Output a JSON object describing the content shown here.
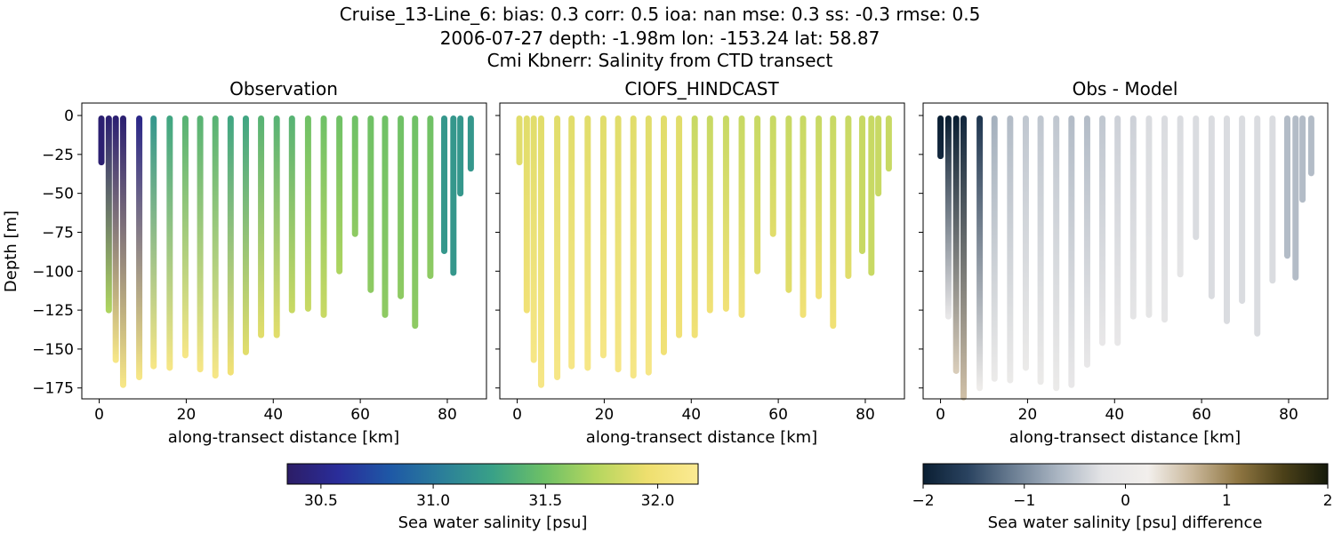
{
  "title_lines": [
    "Cruise_13-Line_6: bias: 0.3  corr: 0.5  ioa: nan  mse: 0.3  ss: -0.3  rmse: 0.5",
    "2006-07-27 depth: -1.98m lon: -153.24 lat: 58.87",
    "Cmi Kbnerr: Salinity from CTD transect"
  ],
  "colors": {
    "salinity_colormap": [
      "#2c1d66",
      "#2a2d9a",
      "#1e58a6",
      "#2b7e9a",
      "#39a187",
      "#6dc066",
      "#b4d65f",
      "#eedf6e",
      "#fbea93"
    ],
    "difference_colormap": [
      "#0b1f33",
      "#2a4360",
      "#6b7e93",
      "#aab5c2",
      "#e4e4e6",
      "#f2efec",
      "#c9b79a",
      "#8f7642",
      "#4c4119",
      "#151a0b"
    ]
  },
  "chart_data": [
    {
      "type": "scatter",
      "subtype": "depth-transect",
      "title": "Observation",
      "xlabel": "along-transect distance [km]",
      "ylabel": "Depth [m]",
      "xlim": [
        -4,
        89
      ],
      "ylim": [
        -182,
        8
      ],
      "xticks": [
        0,
        20,
        40,
        60,
        80
      ],
      "yticks": [
        0,
        -25,
        -50,
        -75,
        -100,
        -125,
        -150,
        -175
      ],
      "color_scale": "salinity",
      "casts": [
        {
          "x": 0.5,
          "depth": 30,
          "top": 30.4,
          "bottom": 30.4
        },
        {
          "x": 2.2,
          "depth": 125,
          "top": 30.4,
          "bottom": 31.7
        },
        {
          "x": 3.8,
          "depth": 157,
          "top": 30.4,
          "bottom": 32.1
        },
        {
          "x": 5.5,
          "depth": 173,
          "top": 30.4,
          "bottom": 32.1
        },
        {
          "x": 9.2,
          "depth": 168,
          "top": 30.5,
          "bottom": 32.1
        },
        {
          "x": 12.5,
          "depth": 161,
          "top": 31.2,
          "bottom": 32.1
        },
        {
          "x": 16.2,
          "depth": 162,
          "top": 31.3,
          "bottom": 32.1
        },
        {
          "x": 19.8,
          "depth": 154,
          "top": 31.4,
          "bottom": 32.1
        },
        {
          "x": 23.2,
          "depth": 163,
          "top": 31.4,
          "bottom": 32.1
        },
        {
          "x": 26.7,
          "depth": 167,
          "top": 31.4,
          "bottom": 32.1
        },
        {
          "x": 30.2,
          "depth": 165,
          "top": 31.3,
          "bottom": 32.0
        },
        {
          "x": 33.7,
          "depth": 152,
          "top": 31.3,
          "bottom": 31.9
        },
        {
          "x": 37.2,
          "depth": 141,
          "top": 31.4,
          "bottom": 31.9
        },
        {
          "x": 40.8,
          "depth": 141,
          "top": 31.4,
          "bottom": 31.9
        },
        {
          "x": 44.3,
          "depth": 125,
          "top": 31.4,
          "bottom": 31.8
        },
        {
          "x": 48.0,
          "depth": 124,
          "top": 31.5,
          "bottom": 31.8
        },
        {
          "x": 51.6,
          "depth": 128,
          "top": 31.5,
          "bottom": 31.8
        },
        {
          "x": 55.2,
          "depth": 100,
          "top": 31.5,
          "bottom": 31.7
        },
        {
          "x": 58.8,
          "depth": 76,
          "top": 31.5,
          "bottom": 31.6
        },
        {
          "x": 62.4,
          "depth": 112,
          "top": 31.5,
          "bottom": 31.6
        },
        {
          "x": 65.7,
          "depth": 128,
          "top": 31.5,
          "bottom": 31.6
        },
        {
          "x": 69.3,
          "depth": 116,
          "top": 31.5,
          "bottom": 31.6
        },
        {
          "x": 72.6,
          "depth": 135,
          "top": 31.5,
          "bottom": 31.6
        },
        {
          "x": 76.1,
          "depth": 103,
          "top": 31.5,
          "bottom": 31.6
        },
        {
          "x": 79.3,
          "depth": 87,
          "top": 31.2,
          "bottom": 31.2
        },
        {
          "x": 81.4,
          "depth": 101,
          "top": 31.2,
          "bottom": 31.2
        },
        {
          "x": 83.0,
          "depth": 50,
          "top": 31.2,
          "bottom": 31.2
        },
        {
          "x": 85.4,
          "depth": 34,
          "top": 31.2,
          "bottom": 31.2
        }
      ]
    },
    {
      "type": "scatter",
      "subtype": "depth-transect",
      "title": "CIOFS_HINDCAST",
      "xlabel": "along-transect distance [km]",
      "ylabel": "",
      "xlim": [
        -4,
        89
      ],
      "ylim": [
        -182,
        8
      ],
      "xticks": [
        0,
        20,
        40,
        60,
        80
      ],
      "yticks": [
        0,
        -25,
        -50,
        -75,
        -100,
        -125,
        -150,
        -175
      ],
      "color_scale": "salinity",
      "casts": [
        {
          "x": 0.5,
          "depth": 30,
          "top": 31.9,
          "bottom": 31.9
        },
        {
          "x": 2.2,
          "depth": 125,
          "top": 31.9,
          "bottom": 32.0
        },
        {
          "x": 3.8,
          "depth": 157,
          "top": 31.9,
          "bottom": 32.1
        },
        {
          "x": 5.5,
          "depth": 173,
          "top": 31.9,
          "bottom": 32.1
        },
        {
          "x": 9.2,
          "depth": 168,
          "top": 31.9,
          "bottom": 32.1
        },
        {
          "x": 12.5,
          "depth": 161,
          "top": 31.9,
          "bottom": 32.1
        },
        {
          "x": 16.2,
          "depth": 162,
          "top": 31.9,
          "bottom": 32.1
        },
        {
          "x": 19.8,
          "depth": 154,
          "top": 31.9,
          "bottom": 32.1
        },
        {
          "x": 23.2,
          "depth": 163,
          "top": 31.9,
          "bottom": 32.1
        },
        {
          "x": 26.7,
          "depth": 167,
          "top": 31.9,
          "bottom": 32.1
        },
        {
          "x": 30.2,
          "depth": 165,
          "top": 31.9,
          "bottom": 32.1
        },
        {
          "x": 33.7,
          "depth": 152,
          "top": 31.9,
          "bottom": 32.0
        },
        {
          "x": 37.2,
          "depth": 141,
          "top": 31.9,
          "bottom": 32.0
        },
        {
          "x": 40.8,
          "depth": 141,
          "top": 31.8,
          "bottom": 32.0
        },
        {
          "x": 44.3,
          "depth": 125,
          "top": 31.8,
          "bottom": 32.0
        },
        {
          "x": 48.0,
          "depth": 124,
          "top": 31.8,
          "bottom": 32.0
        },
        {
          "x": 51.6,
          "depth": 128,
          "top": 31.8,
          "bottom": 32.0
        },
        {
          "x": 55.2,
          "depth": 100,
          "top": 31.8,
          "bottom": 31.9
        },
        {
          "x": 58.8,
          "depth": 76,
          "top": 31.8,
          "bottom": 31.9
        },
        {
          "x": 62.4,
          "depth": 112,
          "top": 31.8,
          "bottom": 31.9
        },
        {
          "x": 65.7,
          "depth": 128,
          "top": 31.8,
          "bottom": 32.0
        },
        {
          "x": 69.3,
          "depth": 116,
          "top": 31.8,
          "bottom": 32.0
        },
        {
          "x": 72.6,
          "depth": 135,
          "top": 31.8,
          "bottom": 32.0
        },
        {
          "x": 76.1,
          "depth": 103,
          "top": 31.8,
          "bottom": 31.9
        },
        {
          "x": 79.3,
          "depth": 87,
          "top": 31.8,
          "bottom": 31.8
        },
        {
          "x": 81.4,
          "depth": 101,
          "top": 31.8,
          "bottom": 31.8
        },
        {
          "x": 83.0,
          "depth": 50,
          "top": 31.8,
          "bottom": 31.8
        },
        {
          "x": 85.4,
          "depth": 34,
          "top": 31.8,
          "bottom": 31.8
        }
      ]
    },
    {
      "type": "scatter",
      "subtype": "depth-transect",
      "title": "Obs - Model",
      "xlabel": "along-transect distance [km]",
      "ylabel": "",
      "xlim": [
        -4,
        89
      ],
      "ylim": [
        -182,
        8
      ],
      "xticks": [
        0,
        20,
        40,
        60,
        80
      ],
      "yticks": [
        0,
        -25,
        -50,
        -75,
        -100,
        -125,
        -150,
        -175
      ],
      "color_scale": "difference",
      "casts": [
        {
          "x": 0.0,
          "depth": 26,
          "top": -2.0,
          "bottom": -1.9
        },
        {
          "x": 1.8,
          "depth": 129,
          "top": -2.0,
          "bottom": -0.1
        },
        {
          "x": 3.6,
          "depth": 164,
          "top": -2.0,
          "bottom": 0.5
        },
        {
          "x": 5.3,
          "depth": 181,
          "top": -1.9,
          "bottom": 0.6
        },
        {
          "x": 9.0,
          "depth": 175,
          "top": -1.7,
          "bottom": 0.1
        },
        {
          "x": 12.4,
          "depth": 169,
          "top": -0.7,
          "bottom": 0.0
        },
        {
          "x": 16.0,
          "depth": 170,
          "top": -0.6,
          "bottom": 0.0
        },
        {
          "x": 19.6,
          "depth": 162,
          "top": -0.5,
          "bottom": 0.0
        },
        {
          "x": 23.0,
          "depth": 171,
          "top": -0.5,
          "bottom": 0.0
        },
        {
          "x": 26.6,
          "depth": 175,
          "top": -0.5,
          "bottom": 0.0
        },
        {
          "x": 30.1,
          "depth": 173,
          "top": -0.6,
          "bottom": -0.1
        },
        {
          "x": 33.7,
          "depth": 160,
          "top": -0.6,
          "bottom": -0.1
        },
        {
          "x": 37.2,
          "depth": 146,
          "top": -0.5,
          "bottom": -0.1
        },
        {
          "x": 40.7,
          "depth": 146,
          "top": -0.4,
          "bottom": -0.1
        },
        {
          "x": 44.3,
          "depth": 129,
          "top": -0.4,
          "bottom": -0.2
        },
        {
          "x": 47.9,
          "depth": 128,
          "top": -0.3,
          "bottom": -0.2
        },
        {
          "x": 51.5,
          "depth": 131,
          "top": -0.3,
          "bottom": -0.2
        },
        {
          "x": 55.1,
          "depth": 102,
          "top": -0.3,
          "bottom": -0.2
        },
        {
          "x": 58.7,
          "depth": 78,
          "top": -0.3,
          "bottom": -0.3
        },
        {
          "x": 62.3,
          "depth": 116,
          "top": -0.3,
          "bottom": -0.3
        },
        {
          "x": 65.8,
          "depth": 132,
          "top": -0.3,
          "bottom": -0.3
        },
        {
          "x": 69.3,
          "depth": 119,
          "top": -0.3,
          "bottom": -0.3
        },
        {
          "x": 72.8,
          "depth": 140,
          "top": -0.3,
          "bottom": -0.3
        },
        {
          "x": 76.3,
          "depth": 106,
          "top": -0.3,
          "bottom": -0.3
        },
        {
          "x": 79.7,
          "depth": 90,
          "top": -0.6,
          "bottom": -0.6
        },
        {
          "x": 81.6,
          "depth": 104,
          "top": -0.6,
          "bottom": -0.6
        },
        {
          "x": 83.2,
          "depth": 54,
          "top": -0.6,
          "bottom": -0.6
        },
        {
          "x": 85.2,
          "depth": 37,
          "top": -0.6,
          "bottom": -0.6
        }
      ]
    }
  ],
  "colorbars": {
    "salinity": {
      "label": "Sea water salinity [psu]",
      "range": [
        30.35,
        32.18
      ],
      "ticks": [
        30.5,
        31.0,
        31.5,
        32.0
      ],
      "tick_labels": [
        "30.5",
        "31.0",
        "31.5",
        "32.0"
      ]
    },
    "difference": {
      "label": "Sea water salinity [psu] difference",
      "range": [
        -2,
        2
      ],
      "ticks": [
        -2,
        -1,
        0,
        1,
        2
      ],
      "tick_labels": [
        "−2",
        "−1",
        "0",
        "1",
        "2"
      ]
    }
  }
}
